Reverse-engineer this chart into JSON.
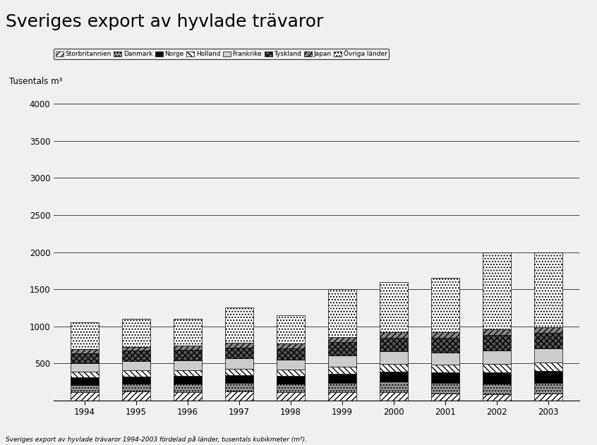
{
  "title": "Sveriges export av hyvlade trävaror",
  "ylabel": "Tusentals m³",
  "footnote": "Sveriges export av hyvlade trävaror 1994-2003 fördelad på länder, tusentals kubikmeter (m³).",
  "years": [
    "1994",
    "1995",
    "1996",
    "1997",
    "1998",
    "1999",
    "2000",
    "2001",
    "2002",
    "2003"
  ],
  "categories": [
    "Storbritannien",
    "Danmark",
    "Norge",
    "Holland",
    "Frankrike",
    "Tyskland",
    "Japan",
    "Övriga länder"
  ],
  "segment_data": {
    "Storbritannien": [
      110,
      120,
      115,
      120,
      110,
      110,
      115,
      95,
      80,
      90
    ],
    "Danmark": [
      100,
      105,
      110,
      115,
      115,
      130,
      140,
      140,
      145,
      150
    ],
    "Norge": [
      100,
      100,
      105,
      110,
      105,
      120,
      135,
      140,
      155,
      160
    ],
    "Holland": [
      75,
      80,
      80,
      85,
      85,
      95,
      105,
      105,
      110,
      115
    ],
    "Frankrike": [
      120,
      125,
      130,
      135,
      135,
      155,
      165,
      170,
      180,
      185
    ],
    "Tyskland": [
      135,
      140,
      145,
      150,
      155,
      180,
      190,
      200,
      210,
      215
    ],
    "Japan": [
      50,
      55,
      55,
      60,
      60,
      65,
      70,
      75,
      80,
      75
    ],
    "Övriga länder": [
      360,
      375,
      360,
      475,
      385,
      645,
      680,
      725,
      1040,
      1010
    ]
  },
  "hatch_styles": [
    {
      "hatch": "////",
      "facecolor": "#ffffff",
      "edgecolor": "#000000"
    },
    {
      "hatch": "....",
      "facecolor": "#999999",
      "edgecolor": "#000000"
    },
    {
      "hatch": "",
      "facecolor": "#000000",
      "edgecolor": "#000000"
    },
    {
      "hatch": "\\\\\\\\",
      "facecolor": "#ffffff",
      "edgecolor": "#000000"
    },
    {
      "hatch": "",
      "facecolor": "#cccccc",
      "edgecolor": "#000000"
    },
    {
      "hatch": "xxxx",
      "facecolor": "#555555",
      "edgecolor": "#000000"
    },
    {
      "hatch": "////",
      "facecolor": "#888888",
      "edgecolor": "#000000"
    },
    {
      "hatch": "....",
      "facecolor": "#ffffff",
      "edgecolor": "#000000"
    }
  ],
  "ylim": [
    0,
    4200
  ],
  "yticks": [
    0,
    500,
    1000,
    1500,
    2000,
    2500,
    3000,
    3500,
    4000
  ],
  "background_color": "#f0f0f0",
  "title_fontsize": 18,
  "legend_fontsize": 6.5,
  "axis_fontsize": 8.5
}
